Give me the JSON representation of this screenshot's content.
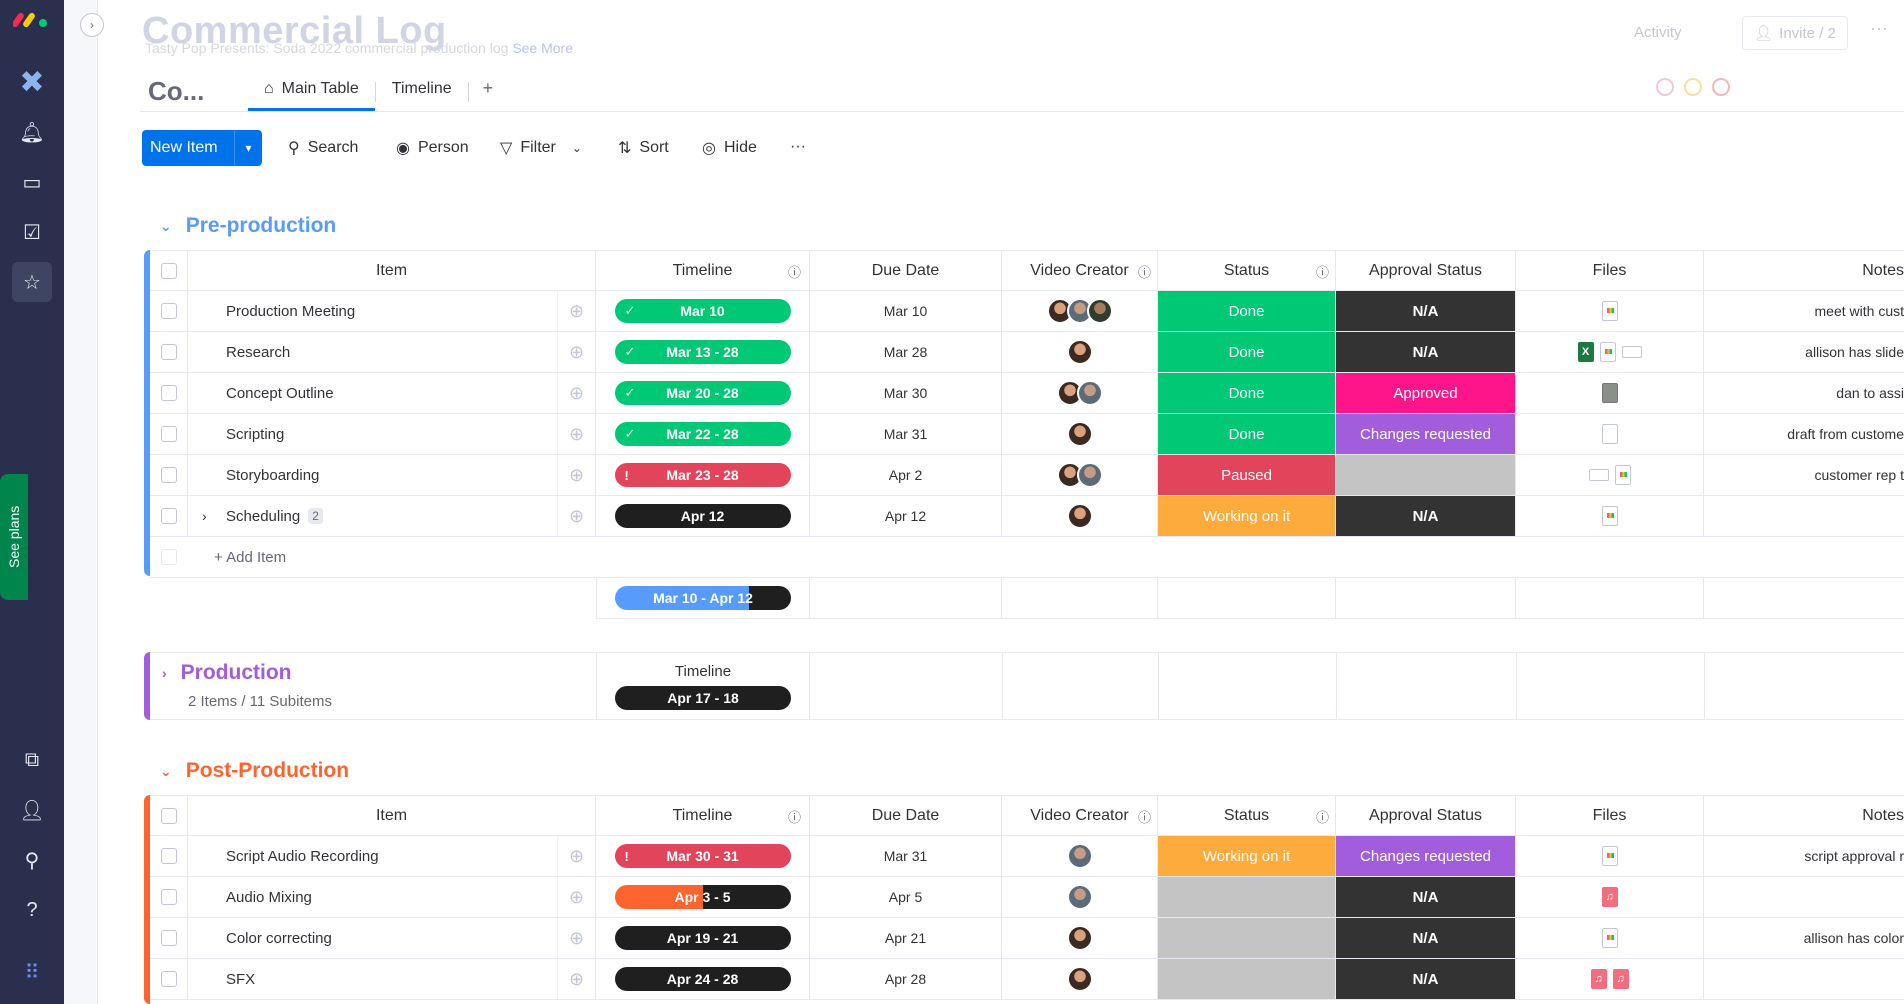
{
  "header": {
    "board_title": "Commercial Log",
    "board_description": "Tasty Pop Presents: Soda 2022 commercial production log",
    "see_more": "See More",
    "activity_label": "Activity",
    "invite_label": "Invite / 2",
    "short_title": "Co..."
  },
  "sidebar": {
    "see_plans": "See plans"
  },
  "tabs": [
    {
      "label": "Main Table"
    },
    {
      "label": "Timeline"
    }
  ],
  "tab_add": "+",
  "toolbar": {
    "new_item": "New Item",
    "search": "Search",
    "person": "Person",
    "filter": "Filter",
    "sort": "Sort",
    "hide": "Hide",
    "more": "···"
  },
  "columns": {
    "item": "Item",
    "timeline": "Timeline",
    "due_date": "Due Date",
    "video_creator": "Video Creator",
    "status": "Status",
    "approval": "Approval Status",
    "files": "Files",
    "notes": "Notes"
  },
  "groups": [
    {
      "name": "Pre-production",
      "color": "#579bfc",
      "add_item": "+ Add Item",
      "summary_timeline": "Mar 10 - Apr 12",
      "rows": [
        {
          "item": "Production Meeting",
          "timeline": "Mar 10",
          "due": "Mar 10",
          "status": "Done",
          "approval": "N/A",
          "notes": "meet with cust"
        },
        {
          "item": "Research",
          "timeline": "Mar 13 - 28",
          "due": "Mar 28",
          "status": "Done",
          "approval": "N/A",
          "notes": "allison has slide"
        },
        {
          "item": "Concept Outline",
          "timeline": "Mar 20 - 28",
          "due": "Mar 30",
          "status": "Done",
          "approval": "Approved",
          "notes": "dan to assi"
        },
        {
          "item": "Scripting",
          "timeline": "Mar 22 - 28",
          "due": "Mar 31",
          "status": "Done",
          "approval": "Changes requested",
          "notes": "draft from custome"
        },
        {
          "item": "Storyboarding",
          "timeline": "Mar 23 - 28",
          "due": "Apr 2",
          "status": "Paused",
          "approval": "",
          "notes": "customer rep t"
        },
        {
          "item": "Scheduling",
          "timeline": "Apr 12",
          "due": "Apr 12",
          "status": "Working on it",
          "approval": "N/A",
          "notes": "",
          "subitems": "2"
        }
      ]
    },
    {
      "name": "Production",
      "color": "#a25ddc",
      "meta": "2 Items / 11 Subitems",
      "timeline_label": "Timeline",
      "timeline": "Apr 17 - 18"
    },
    {
      "name": "Post-Production",
      "color": "#ff642e",
      "rows": [
        {
          "item": "Script Audio Recording",
          "timeline": "Mar 30 - 31",
          "due": "Mar 31",
          "status": "Working on it",
          "approval": "Changes requested",
          "notes": "script approval r"
        },
        {
          "item": "Audio Mixing",
          "timeline": "Apr 3 - 5",
          "due": "Apr 5",
          "status": "",
          "approval": "N/A",
          "notes": ""
        },
        {
          "item": "Color correcting",
          "timeline": "Apr 19 - 21",
          "due": "Apr 21",
          "status": "",
          "approval": "N/A",
          "notes": "allison has color"
        },
        {
          "item": "SFX",
          "timeline": "Apr 24 - 28",
          "due": "Apr 28",
          "status": "",
          "approval": "N/A",
          "notes": ""
        }
      ]
    }
  ]
}
